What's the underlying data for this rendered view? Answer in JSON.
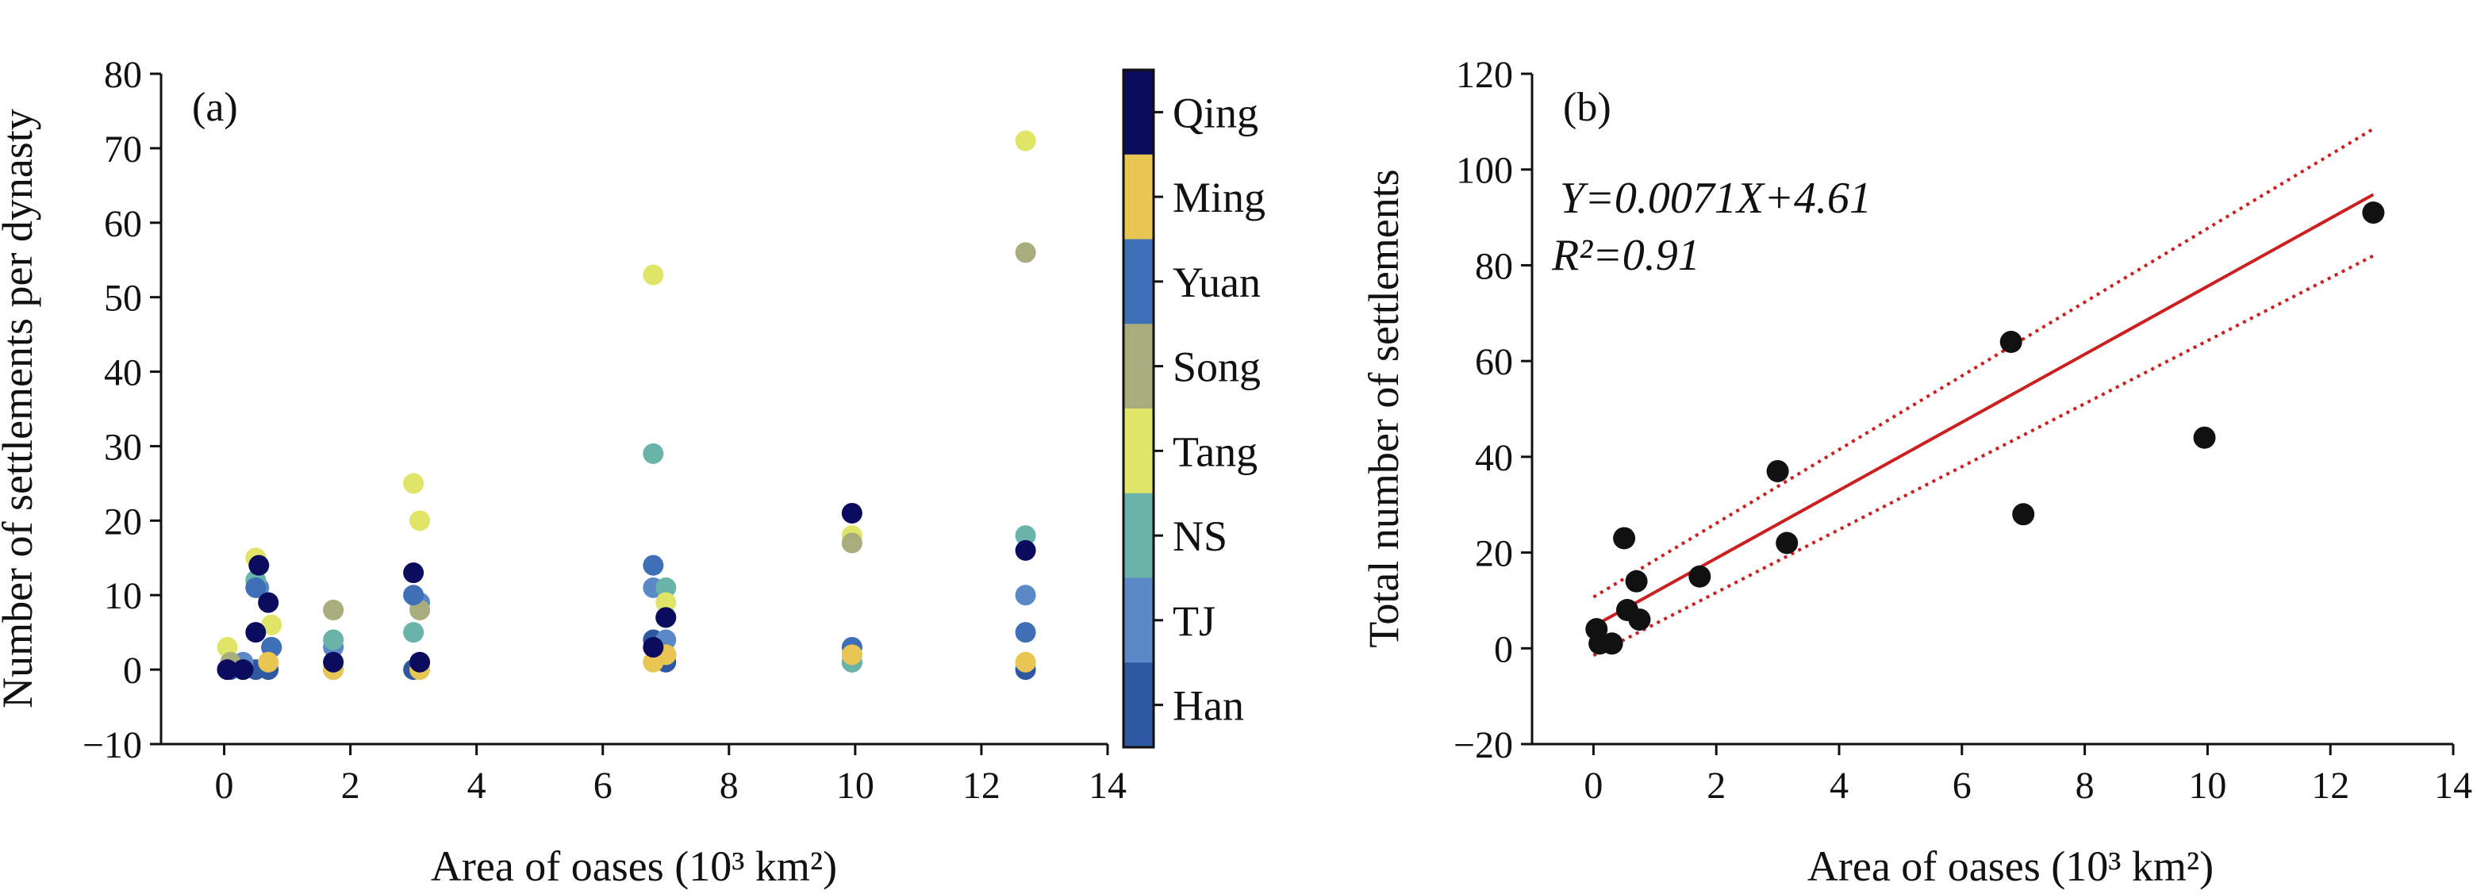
{
  "chart_data": [
    {
      "panel": "(a)",
      "type": "scatter",
      "xlabel": "Area of oases (10³ km²)",
      "ylabel": "Number of settlements per dynasty",
      "xlim": [
        -1,
        14
      ],
      "ylim": [
        -10,
        80
      ],
      "xticks": [
        0,
        2,
        4,
        6,
        8,
        10,
        12,
        14
      ],
      "yticks": [
        -10,
        0,
        10,
        20,
        30,
        40,
        50,
        60,
        70,
        80
      ],
      "grid": false,
      "colorbar": {
        "categories": [
          "Qing",
          "Ming",
          "Yuan",
          "Song",
          "Tang",
          "NS",
          "TJ",
          "Han"
        ],
        "colors": [
          "#0c0c5e",
          "#e9c553",
          "#3f6fb6",
          "#a9ad7d",
          "#e1e567",
          "#6ab3a8",
          "#5b89c8",
          "#2f58a2"
        ]
      },
      "series": [
        {
          "name": "Han",
          "color": "#2f58a2",
          "points": [
            [
              0.05,
              0
            ],
            [
              0.1,
              0
            ],
            [
              0.3,
              0
            ],
            [
              0.5,
              0
            ],
            [
              0.7,
              0
            ],
            [
              0.75,
              3
            ],
            [
              1.73,
              0
            ],
            [
              3.0,
              0
            ],
            [
              6.8,
              4
            ],
            [
              7.0,
              1
            ],
            [
              9.95,
              1
            ],
            [
              12.7,
              0
            ]
          ]
        },
        {
          "name": "TJ",
          "color": "#5b89c8",
          "points": [
            [
              0.3,
              1
            ],
            [
              0.55,
              11
            ],
            [
              1.73,
              3
            ],
            [
              3.1,
              9
            ],
            [
              6.8,
              11
            ],
            [
              7.0,
              4
            ],
            [
              9.95,
              2
            ],
            [
              12.7,
              10
            ]
          ]
        },
        {
          "name": "NS",
          "color": "#6ab3a8",
          "points": [
            [
              0.5,
              12
            ],
            [
              1.73,
              4
            ],
            [
              3.0,
              5
            ],
            [
              6.8,
              29
            ],
            [
              7.0,
              11
            ],
            [
              9.95,
              1
            ],
            [
              12.7,
              18
            ]
          ]
        },
        {
          "name": "Tang",
          "color": "#e1e567",
          "points": [
            [
              0.05,
              3
            ],
            [
              0.5,
              15
            ],
            [
              0.75,
              6
            ],
            [
              1.73,
              8
            ],
            [
              3.0,
              25
            ],
            [
              3.1,
              20
            ],
            [
              6.8,
              53
            ],
            [
              7.0,
              9
            ],
            [
              9.95,
              18
            ],
            [
              12.7,
              71
            ]
          ]
        },
        {
          "name": "Song",
          "color": "#a9ad7d",
          "points": [
            [
              0.1,
              1
            ],
            [
              1.73,
              8
            ],
            [
              3.1,
              8
            ],
            [
              7.0,
              2
            ],
            [
              9.95,
              17
            ],
            [
              12.7,
              56
            ]
          ]
        },
        {
          "name": "Yuan",
          "color": "#3f6fb6",
          "points": [
            [
              0.5,
              11
            ],
            [
              0.75,
              3
            ],
            [
              3.0,
              10
            ],
            [
              6.8,
              14
            ],
            [
              7.0,
              7
            ],
            [
              9.95,
              3
            ],
            [
              12.7,
              5
            ]
          ]
        },
        {
          "name": "Ming",
          "color": "#e9c553",
          "points": [
            [
              0.7,
              1
            ],
            [
              1.73,
              0
            ],
            [
              3.1,
              0
            ],
            [
              6.8,
              1
            ],
            [
              7.0,
              2
            ],
            [
              9.95,
              2
            ],
            [
              12.7,
              1
            ]
          ]
        },
        {
          "name": "Qing",
          "color": "#0c0c5e",
          "points": [
            [
              0.05,
              0
            ],
            [
              0.3,
              0
            ],
            [
              0.5,
              5
            ],
            [
              0.55,
              14
            ],
            [
              0.7,
              9
            ],
            [
              1.73,
              1
            ],
            [
              3.0,
              13
            ],
            [
              3.1,
              1
            ],
            [
              6.8,
              3
            ],
            [
              7.0,
              7
            ],
            [
              9.95,
              21
            ],
            [
              12.7,
              16
            ]
          ]
        }
      ]
    },
    {
      "panel": "(b)",
      "type": "scatter",
      "xlabel": "Area of oases (10³ km²)",
      "ylabel": "Total number of settlements",
      "xlim": [
        -1,
        14
      ],
      "ylim": [
        -20,
        120
      ],
      "xticks": [
        0,
        2,
        4,
        6,
        8,
        10,
        12,
        14
      ],
      "yticks": [
        -20,
        0,
        20,
        40,
        60,
        80,
        100,
        120
      ],
      "grid": false,
      "annotation": {
        "equation": "Y=0.0071X+4.61",
        "r2": "R²=0.91"
      },
      "fit": {
        "slope": 7.1,
        "intercept": 4.61,
        "x_range": [
          0,
          12.7
        ],
        "band_at_x0": [
          -1.5,
          10.7
        ],
        "band_at_xmax": [
          82,
          108.5
        ],
        "color": "#cc1f1f"
      },
      "points": [
        [
          0.05,
          4
        ],
        [
          0.1,
          1
        ],
        [
          0.3,
          1
        ],
        [
          0.5,
          23
        ],
        [
          0.55,
          8
        ],
        [
          0.7,
          14
        ],
        [
          0.75,
          6
        ],
        [
          1.73,
          15
        ],
        [
          3.0,
          37
        ],
        [
          3.15,
          22
        ],
        [
          6.8,
          64
        ],
        [
          7.0,
          28
        ],
        [
          9.95,
          44
        ],
        [
          12.7,
          91
        ]
      ],
      "point_color": "#111111"
    }
  ]
}
